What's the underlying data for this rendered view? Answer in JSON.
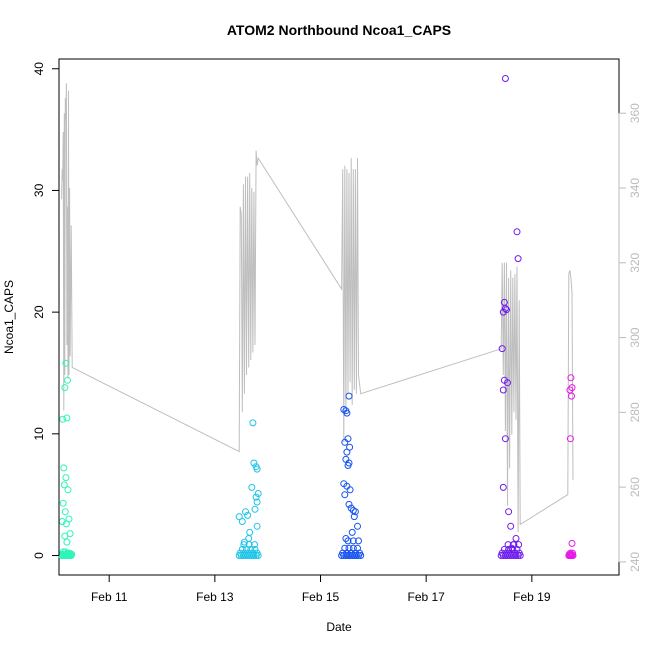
{
  "chart_data": {
    "type": "scatter",
    "title": "ATOM2 Northbound Ncoa1_CAPS",
    "xlabel": "Date",
    "ylabel": "Ncoa1_CAPS",
    "x_unit": "days since Feb 10 00:00",
    "xlim": [
      0.05,
      10.65
    ],
    "ylim": [
      -1.6,
      40.8
    ],
    "y2lim": [
      236.5,
      374.5
    ],
    "x_ticks": [
      {
        "label": "Feb 11",
        "value": 1
      },
      {
        "label": "Feb 13",
        "value": 3
      },
      {
        "label": "Feb 15",
        "value": 5
      },
      {
        "label": "Feb 17",
        "value": 7
      },
      {
        "label": "Feb 19",
        "value": 9
      }
    ],
    "y_ticks": [
      0,
      10,
      20,
      30,
      40
    ],
    "y2_ticks": [
      240,
      260,
      280,
      300,
      320,
      340,
      360
    ],
    "colors": {
      "line": "#bebebe",
      "axes": "#000000",
      "right_axis": "#bbbbbb"
    },
    "series": [
      {
        "name": "Ncoa1_CAPS",
        "marker": "open-circle",
        "groups": [
          {
            "color": "#2ef5b9",
            "x": [
              0.1,
              0.12,
              0.14,
              0.16,
              0.18,
              0.2,
              0.22,
              0.24,
              0.26,
              0.28,
              0.11,
              0.15,
              0.19,
              0.23,
              0.27,
              0.13,
              0.17,
              0.21,
              0.25,
              0.29,
              0.18,
              0.21,
              0.16,
              0.2,
              0.12,
              0.14,
              0.18,
              0.15,
              0.22,
              0.13,
              0.17,
              0.24,
              0.11,
              0.19,
              0.26,
              0.16,
              0.2
            ],
            "y": [
              0,
              0,
              0,
              0,
              0,
              0,
              0,
              0,
              0,
              0,
              0.1,
              0.1,
              0.1,
              0.1,
              0.1,
              0.3,
              0.3,
              0.2,
              0.2,
              0.1,
              15.8,
              14.4,
              13.8,
              11.3,
              11.2,
              7.2,
              6.4,
              5.8,
              5.4,
              4.3,
              3.6,
              3.0,
              2.8,
              2.6,
              1.8,
              1.6,
              1.1
            ]
          },
          {
            "color": "#1ec4e8",
            "x": [
              3.46,
              3.5,
              3.54,
              3.58,
              3.62,
              3.66,
              3.7,
              3.74,
              3.78,
              3.82,
              3.48,
              3.56,
              3.64,
              3.72,
              3.8,
              3.52,
              3.6,
              3.68,
              3.76,
              3.55,
              3.65,
              3.75,
              3.72,
              3.74,
              3.78,
              3.8,
              3.7,
              3.82,
              3.78,
              3.8,
              3.76,
              3.58,
              3.62,
              3.46,
              3.52,
              3.8,
              3.66,
              3.64,
              3.56
            ],
            "y": [
              0,
              0,
              0,
              0,
              0,
              0,
              0,
              0,
              0,
              0,
              0.2,
              0.2,
              0.2,
              0.2,
              0.2,
              0.5,
              0.5,
              0.5,
              0.5,
              0.9,
              0.9,
              0.9,
              10.9,
              7.6,
              7.3,
              7.1,
              5.6,
              5.1,
              4.8,
              4.4,
              3.8,
              3.6,
              3.3,
              3.2,
              2.8,
              2.4,
              1.9,
              1.4,
              1.1
            ]
          },
          {
            "color": "#1752f0",
            "x": [
              5.4,
              5.44,
              5.48,
              5.52,
              5.56,
              5.6,
              5.64,
              5.68,
              5.72,
              5.76,
              5.42,
              5.5,
              5.58,
              5.66,
              5.74,
              5.46,
              5.54,
              5.62,
              5.7,
              5.52,
              5.62,
              5.72,
              5.54,
              5.44,
              5.5,
              5.48,
              5.52,
              5.46,
              5.55,
              5.5,
              5.48,
              5.54,
              5.52,
              5.44,
              5.5,
              5.56,
              5.46,
              5.54,
              5.58,
              5.62,
              5.66,
              5.64,
              5.7,
              5.6,
              5.48
            ],
            "y": [
              0,
              0,
              0,
              0,
              0,
              0,
              0,
              0,
              0,
              0,
              0.2,
              0.2,
              0.2,
              0.2,
              0.2,
              0.6,
              0.6,
              0.6,
              0.6,
              1.2,
              1.2,
              1.2,
              13.1,
              12.0,
              11.7,
              11.9,
              9.6,
              9.3,
              8.9,
              8.5,
              7.9,
              7.6,
              7.4,
              5.9,
              5.7,
              5.4,
              5.0,
              4.2,
              3.9,
              3.7,
              3.6,
              3.2,
              2.4,
              1.9,
              1.4
            ]
          },
          {
            "color": "#6f1cef",
            "x": [
              8.42,
              8.46,
              8.5,
              8.54,
              8.58,
              8.62,
              8.66,
              8.7,
              8.74,
              8.78,
              8.44,
              8.52,
              8.6,
              8.68,
              8.76,
              8.48,
              8.56,
              8.64,
              8.72,
              8.55,
              8.65,
              8.75,
              8.5,
              8.72,
              8.74,
              8.48,
              8.5,
              8.46,
              8.52,
              8.44,
              8.48,
              8.54,
              8.46,
              8.5,
              8.46,
              8.56,
              8.6,
              8.7,
              8.66,
              8.62
            ],
            "y": [
              0,
              0,
              0,
              0,
              0,
              0,
              0,
              0,
              0,
              0,
              0.2,
              0.2,
              0.2,
              0.2,
              0.2,
              0.5,
              0.5,
              0.5,
              0.5,
              0.9,
              0.9,
              0.9,
              39.2,
              26.6,
              24.4,
              20.8,
              20.3,
              20.0,
              20.2,
              17.0,
              14.4,
              14.2,
              13.6,
              9.6,
              5.6,
              3.6,
              2.4,
              1.4,
              0.9,
              0.6
            ]
          },
          {
            "color": "#e61ae8",
            "x": [
              9.7,
              9.72,
              9.74,
              9.76,
              9.78,
              9.71,
              9.75,
              9.73,
              9.77,
              9.74,
              9.76,
              9.72,
              9.75,
              9.73,
              9.76
            ],
            "y": [
              0,
              0,
              0,
              0,
              0,
              0.1,
              0.1,
              0.2,
              0.2,
              14.6,
              13.8,
              13.6,
              13.1,
              9.6,
              1.0
            ]
          }
        ]
      },
      {
        "name": "secondary (right axis)",
        "type": "line",
        "axis": "right",
        "x": [
          0.1,
          0.11,
          0.12,
          0.13,
          0.14,
          0.15,
          0.16,
          0.17,
          0.18,
          0.19,
          0.2,
          0.21,
          0.22,
          0.23,
          0.24,
          0.25,
          0.26,
          0.28,
          0.3,
          3.46,
          3.48,
          3.5,
          3.52,
          3.54,
          3.56,
          3.58,
          3.6,
          3.62,
          3.64,
          3.66,
          3.68,
          3.7,
          3.72,
          3.74,
          3.76,
          3.78,
          3.8,
          3.82,
          5.4,
          5.42,
          5.44,
          5.46,
          5.48,
          5.5,
          5.52,
          5.54,
          5.56,
          5.58,
          5.6,
          5.62,
          5.64,
          5.66,
          5.68,
          5.7,
          5.72,
          5.76,
          8.42,
          8.44,
          8.46,
          8.48,
          8.5,
          8.52,
          8.54,
          8.56,
          8.58,
          8.6,
          8.62,
          8.64,
          8.66,
          8.68,
          8.7,
          8.72,
          8.74,
          8.76,
          8.78,
          9.68,
          9.7,
          9.72,
          9.74,
          9.76,
          9.78
        ],
        "y": [
          337.0,
          345.0,
          342.0,
          355.0,
          280.5,
          360.0,
          290.0,
          364.0,
          358.0,
          368.0,
          298.0,
          335.0,
          289.0,
          366.0,
          290.0,
          340.0,
          295.0,
          330.0,
          292.0,
          269.5,
          335.0,
          333.0,
          280.0,
          341.0,
          285.0,
          343.0,
          290.0,
          343.0,
          292.0,
          344.0,
          294.0,
          340.0,
          296.0,
          339.0,
          298.0,
          350.0,
          346.0,
          348.0,
          313.0,
          345.0,
          272.0,
          346.0,
          280.0,
          345.0,
          285.0,
          344.0,
          288.0,
          348.0,
          282.0,
          345.0,
          286.0,
          345.0,
          285.0,
          348.0,
          290.0,
          285.0,
          297.0,
          320.0,
          290.0,
          320.0,
          275.0,
          320.0,
          255.0,
          316.0,
          265.0,
          318.0,
          274.0,
          316.0,
          280.0,
          317.0,
          278.0,
          319.0,
          248.0,
          310.0,
          250.0,
          258.0,
          317.0,
          318.0,
          316.0,
          312.0,
          262.0
        ]
      }
    ]
  }
}
